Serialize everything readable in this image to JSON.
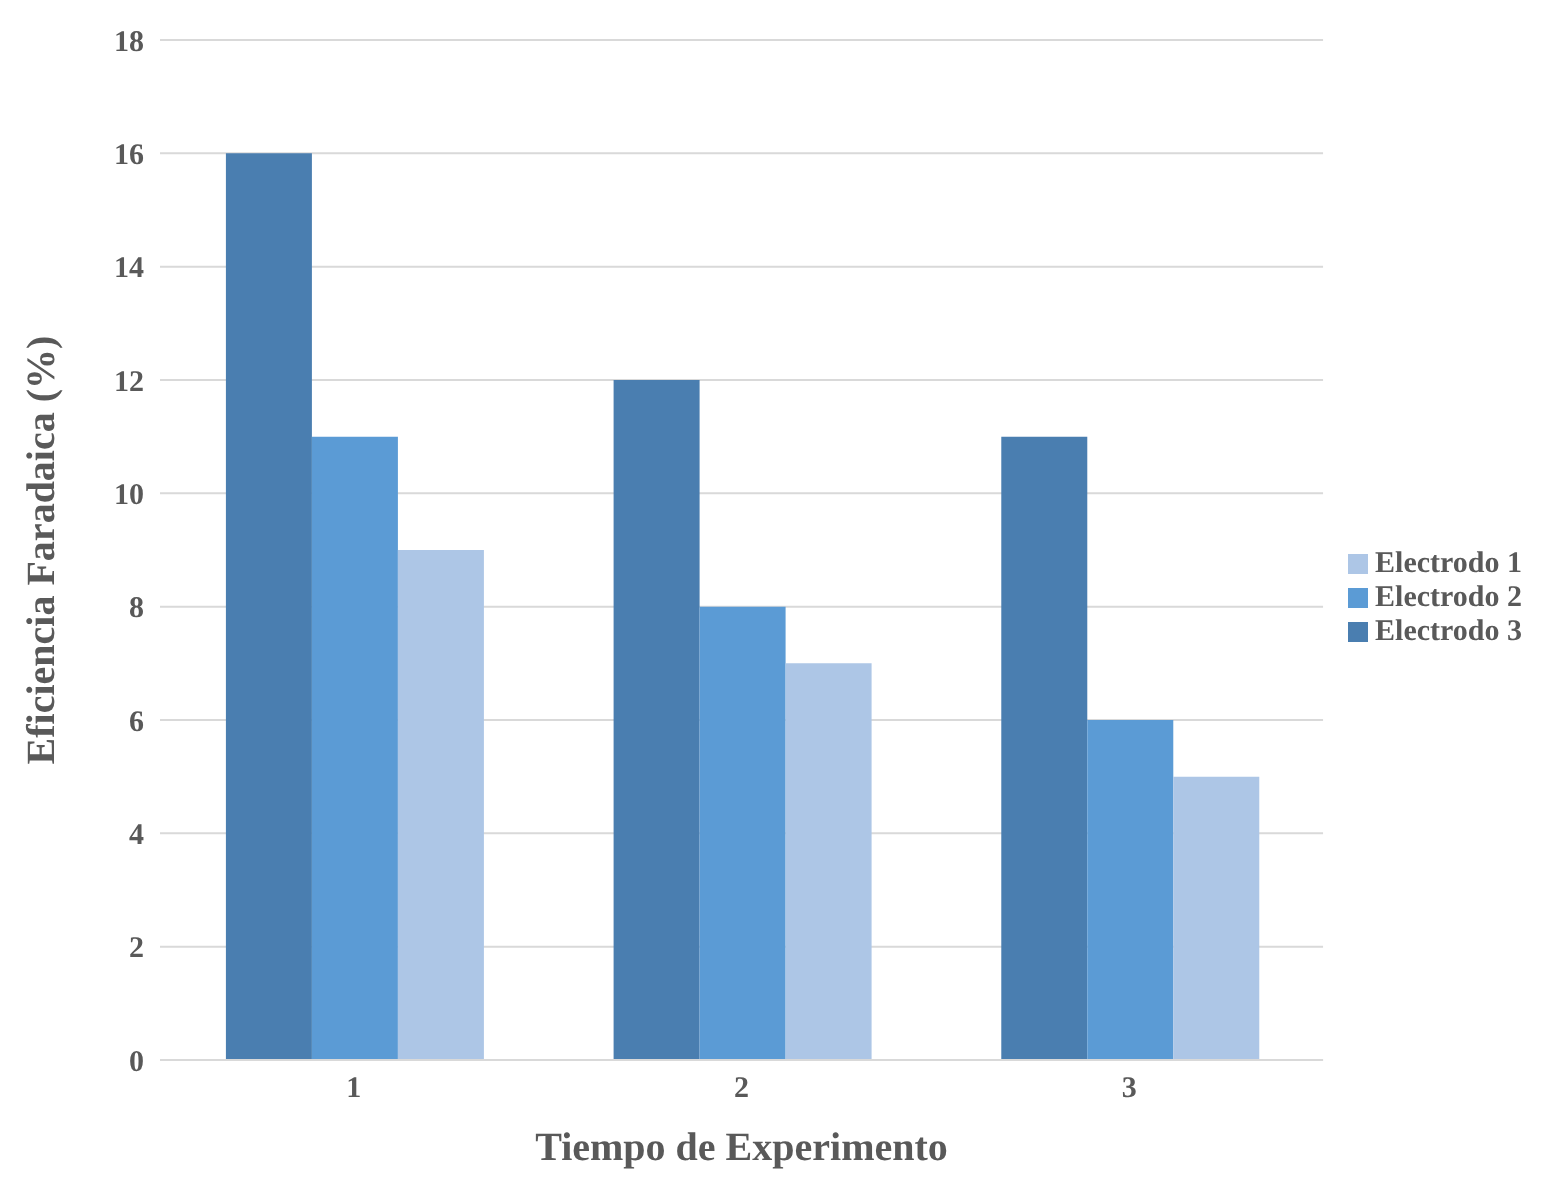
{
  "chart_data": {
    "type": "bar",
    "xlabel": "Tiempo de Experimento",
    "ylabel": "Eficiencia Faradaica (%)",
    "categories": [
      "1",
      "2",
      "3"
    ],
    "series": [
      {
        "name": "Electrodo 3",
        "color": "#4a7eb0",
        "values": [
          16,
          12,
          11
        ]
      },
      {
        "name": "Electrodo 2",
        "color": "#5b9bd5",
        "values": [
          11,
          8,
          6
        ]
      },
      {
        "name": "Electrodo 1",
        "color": "#adc6e6",
        "values": [
          9,
          7,
          5
        ]
      }
    ],
    "ylim": [
      0,
      18
    ],
    "yticks": [
      0,
      2,
      4,
      6,
      8,
      10,
      12,
      14,
      16,
      18
    ],
    "grid": "y",
    "legend": "right"
  }
}
